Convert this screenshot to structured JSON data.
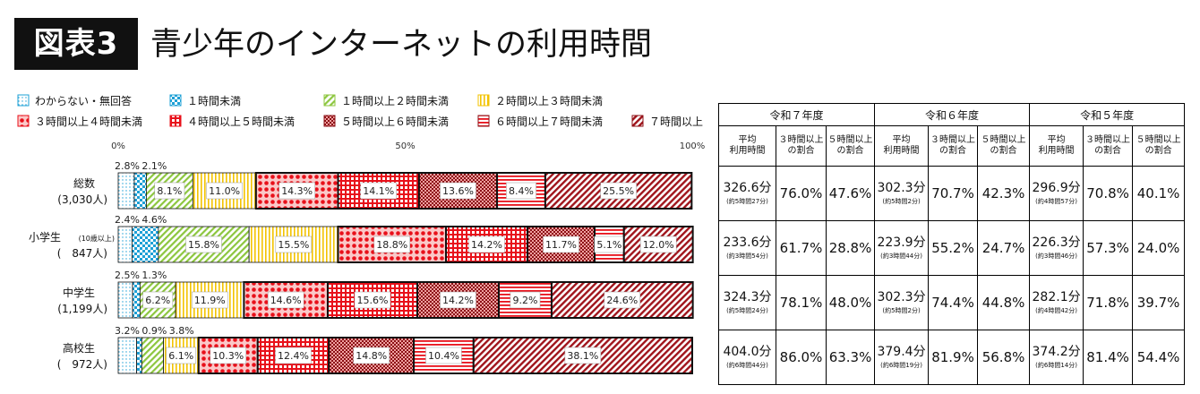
{
  "header": {
    "tag": "図表3",
    "title": "青少年のインターネットの利用時間"
  },
  "chart_data": {
    "type": "bar",
    "orientation": "horizontal",
    "stacked": true,
    "x_axis": {
      "ticks": [
        "0%",
        "50%",
        "100%"
      ],
      "range": [
        0,
        100
      ]
    },
    "legend_position": "top",
    "categories": [
      {
        "name": "総数",
        "count": "(3,030人)"
      },
      {
        "name": "小学生",
        "note": "(10歳以上)",
        "count": "(　847人)"
      },
      {
        "name": "中学生",
        "count": "(1,199人)"
      },
      {
        "name": "高校生",
        "count": "(　972人)"
      }
    ],
    "series": [
      {
        "name": "わからない・無回答",
        "values": [
          2.8,
          2.4,
          2.5,
          3.2
        ],
        "labels": [
          "2.8%",
          "2.4%",
          "2.5%",
          "3.2%"
        ]
      },
      {
        "name": "１時間未満",
        "values": [
          2.1,
          4.6,
          1.3,
          0.9
        ],
        "labels": [
          "2.1%",
          "4.6%",
          "1.3%",
          "0.9%"
        ]
      },
      {
        "name": "１時間以上２時間未満",
        "values": [
          8.1,
          15.8,
          6.2,
          3.8
        ],
        "labels": [
          "8.1%",
          "15.8%",
          "6.2%",
          "3.8%"
        ]
      },
      {
        "name": "２時間以上３時間未満",
        "values": [
          11.0,
          15.5,
          11.9,
          6.1
        ],
        "labels": [
          "11.0%",
          "15.5%",
          "11.9%",
          "6.1%"
        ]
      },
      {
        "name": "３時間以上４時間未満",
        "values": [
          14.3,
          18.8,
          14.6,
          10.3
        ],
        "labels": [
          "14.3%",
          "18.8%",
          "14.6%",
          "10.3%"
        ]
      },
      {
        "name": "４時間以上５時間未満",
        "values": [
          14.1,
          14.2,
          15.6,
          12.4
        ],
        "labels": [
          "14.1%",
          "14.2%",
          "15.6%",
          "12.4%"
        ]
      },
      {
        "name": "５時間以上６時間未満",
        "values": [
          13.6,
          11.7,
          14.2,
          14.8
        ],
        "labels": [
          "13.6%",
          "11.7%",
          "14.2%",
          "14.8%"
        ]
      },
      {
        "name": "６時間以上７時間未満",
        "values": [
          8.4,
          5.1,
          9.2,
          10.4
        ],
        "labels": [
          "8.4%",
          "5.1%",
          "9.2%",
          "10.4%"
        ]
      },
      {
        "name": "７時間以上",
        "values": [
          25.5,
          12.0,
          24.6,
          38.1
        ],
        "labels": [
          "25.5%",
          "12.0%",
          "24.6%",
          "38.1%"
        ]
      }
    ],
    "colors": {
      "blue": "#1ea0d6",
      "green": "#8cc63e",
      "yellow": "#f3c300",
      "red": "#e8101a",
      "darkred": "#8b0f14",
      "outline": "#111111"
    }
  },
  "table": {
    "years": [
      "令和７年度",
      "令和６年度",
      "令和５年度"
    ],
    "subheaders": [
      [
        "平均",
        "利用時間"
      ],
      [
        "３時間以上",
        "の割合"
      ],
      [
        "５時間以上",
        "の割合"
      ]
    ],
    "rows": [
      [
        {
          "avg": "326.6分",
          "approx": "(約5時間27分)"
        },
        "76.0%",
        "47.6%",
        {
          "avg": "302.3分",
          "approx": "(約5時間2分)"
        },
        "70.7%",
        "42.3%",
        {
          "avg": "296.9分",
          "approx": "(約4時間57分)"
        },
        "70.8%",
        "40.1%"
      ],
      [
        {
          "avg": "233.6分",
          "approx": "(約3時間54分)"
        },
        "61.7%",
        "28.8%",
        {
          "avg": "223.9分",
          "approx": "(約3時間44分)"
        },
        "55.2%",
        "24.7%",
        {
          "avg": "226.3分",
          "approx": "(約3時間46分)"
        },
        "57.3%",
        "24.0%"
      ],
      [
        {
          "avg": "324.3分",
          "approx": "(約5時間24分)"
        },
        "78.1%",
        "48.0%",
        {
          "avg": "302.3分",
          "approx": "(約5時間2分)"
        },
        "74.4%",
        "44.8%",
        {
          "avg": "282.1分",
          "approx": "(約4時間42分)"
        },
        "71.8%",
        "39.7%"
      ],
      [
        {
          "avg": "404.0分",
          "approx": "(約6時間44分)"
        },
        "86.0%",
        "63.3%",
        {
          "avg": "379.4分",
          "approx": "(約6時間19分)"
        },
        "81.9%",
        "56.8%",
        {
          "avg": "374.2分",
          "approx": "(約6時間14分)"
        },
        "81.4%",
        "54.4%"
      ]
    ]
  }
}
